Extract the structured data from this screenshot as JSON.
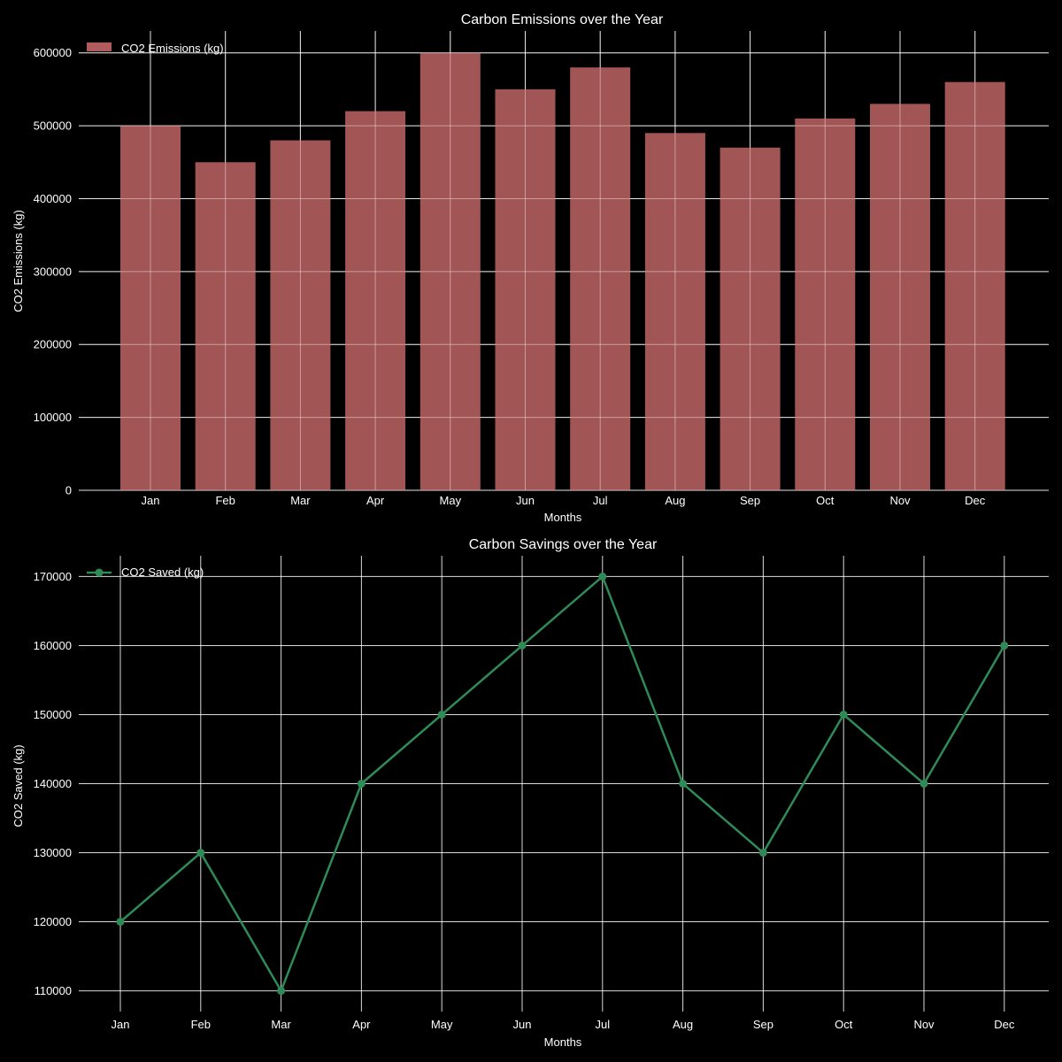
{
  "chart_data": [
    {
      "type": "bar",
      "title": "Carbon Emissions over the Year",
      "xlabel": "Months",
      "ylabel": "CO2 Emissions (kg)",
      "categories": [
        "Jan",
        "Feb",
        "Mar",
        "Apr",
        "May",
        "Jun",
        "Jul",
        "Aug",
        "Sep",
        "Oct",
        "Nov",
        "Dec"
      ],
      "series": [
        {
          "name": "CO2 Emissions (kg)",
          "values": [
            500000,
            450000,
            480000,
            520000,
            600000,
            550000,
            580000,
            490000,
            470000,
            510000,
            530000,
            560000
          ]
        }
      ],
      "yticks": [
        0,
        100000,
        200000,
        300000,
        400000,
        500000,
        600000
      ],
      "ytick_labels": [
        "0",
        "100000",
        "200000",
        "300000",
        "400000",
        "500000",
        "600000"
      ],
      "ylim": [
        0,
        630000
      ],
      "grid": true,
      "legend_position": "top-left",
      "color": "#b05c5c"
    },
    {
      "type": "line",
      "title": "Carbon Savings over the Year",
      "xlabel": "Months",
      "ylabel": "CO2 Saved (kg)",
      "categories": [
        "Jan",
        "Feb",
        "Mar",
        "Apr",
        "May",
        "Jun",
        "Jul",
        "Aug",
        "Sep",
        "Oct",
        "Nov",
        "Dec"
      ],
      "series": [
        {
          "name": "CO2 Saved (kg)",
          "values": [
            120000,
            130000,
            110000,
            140000,
            150000,
            160000,
            170000,
            140000,
            130000,
            150000,
            140000,
            160000
          ]
        }
      ],
      "yticks": [
        110000,
        120000,
        130000,
        140000,
        150000,
        160000,
        170000
      ],
      "ytick_labels": [
        "110000",
        "120000",
        "130000",
        "140000",
        "150000",
        "160000",
        "170000"
      ],
      "ylim": [
        107000,
        173000
      ],
      "grid": true,
      "legend_position": "top-left",
      "color": "#2e8b57"
    }
  ]
}
